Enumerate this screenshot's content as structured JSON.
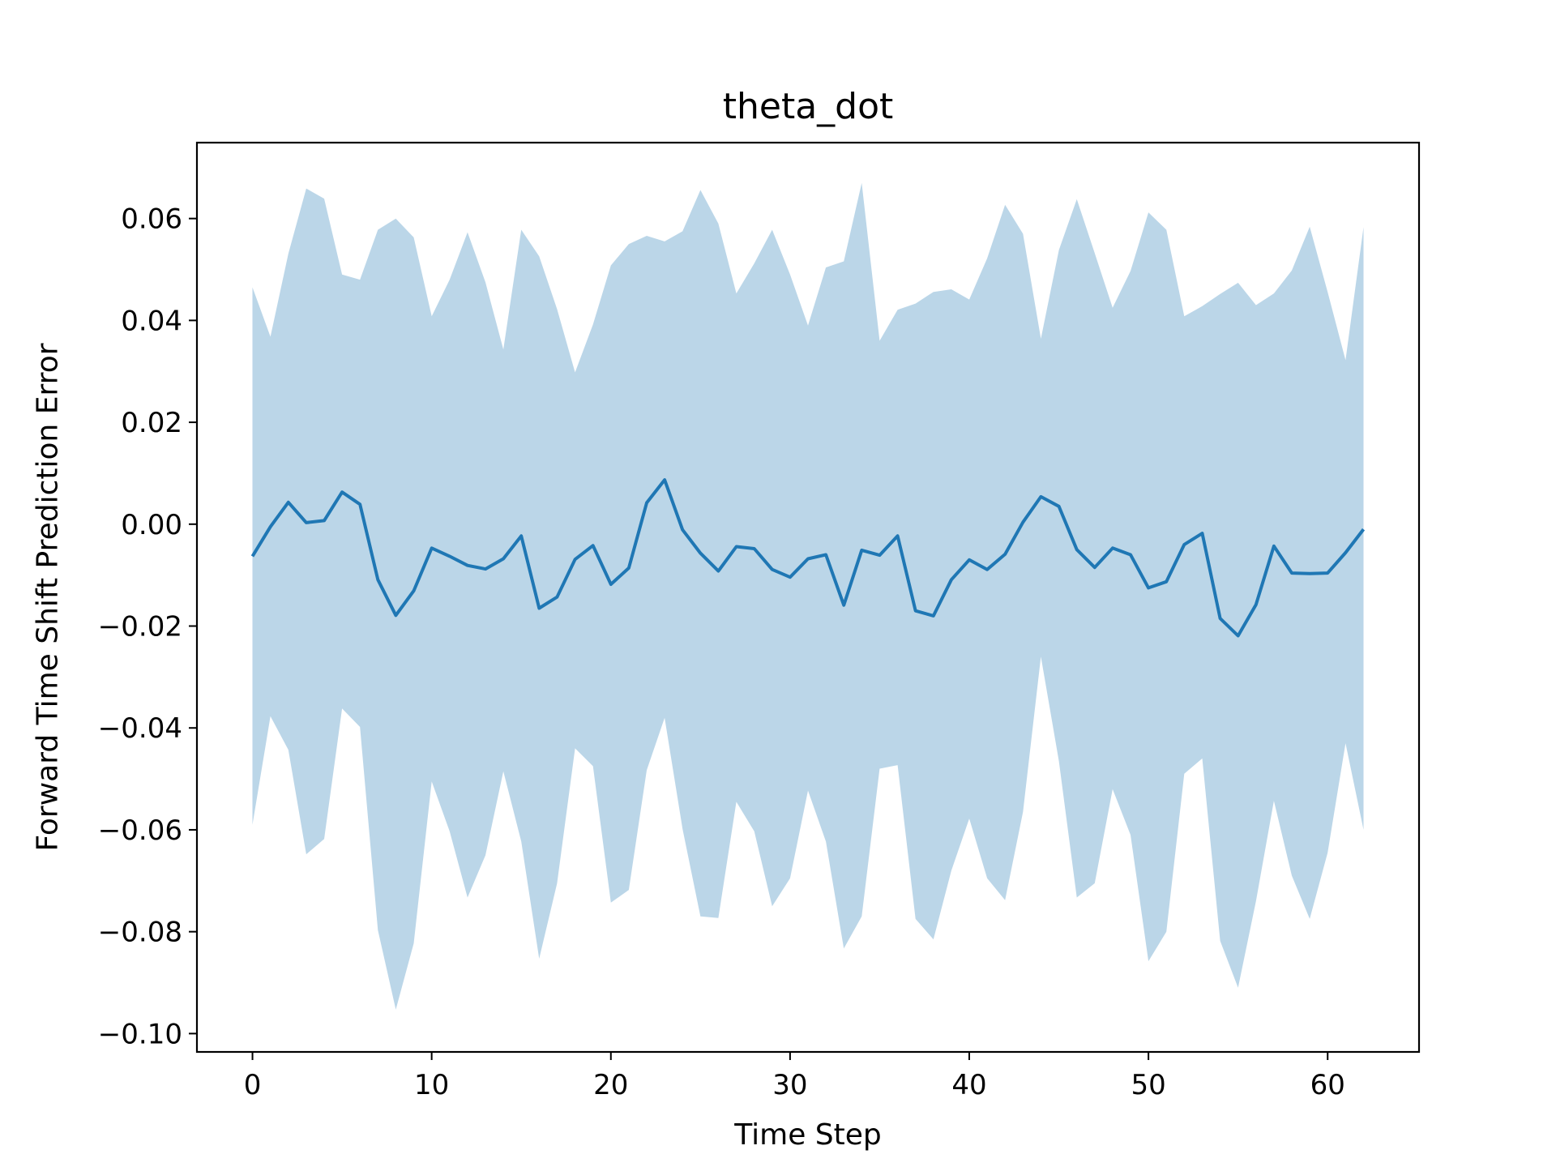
{
  "chart_data": {
    "type": "line",
    "title": "theta_dot",
    "xlabel": "Time Step",
    "ylabel": "Forward Time Shift Prediction Error",
    "xlim": [
      -3.1,
      65.1
    ],
    "ylim": [
      -0.1036,
      0.0749
    ],
    "xticks": [
      0,
      10,
      20,
      30,
      40,
      50,
      60
    ],
    "xtick_labels": [
      "0",
      "10",
      "20",
      "30",
      "40",
      "50",
      "60"
    ],
    "yticks": [
      -0.1,
      -0.08,
      -0.06,
      -0.04,
      -0.02,
      0.0,
      0.02,
      0.04,
      0.06
    ],
    "ytick_labels": [
      "−0.10",
      "−0.08",
      "−0.06",
      "−0.04",
      "−0.02",
      "0.00",
      "0.02",
      "0.04",
      "0.06"
    ],
    "grid": false,
    "legend": "none",
    "colors": {
      "line": "#1f77b4",
      "band": "#1f77b4",
      "band_opacity": 0.3
    },
    "series": [
      {
        "type": "line",
        "x": [
          0,
          1,
          2,
          3,
          4,
          5,
          6,
          7,
          8,
          9,
          10,
          11,
          12,
          13,
          14,
          15,
          16,
          17,
          18,
          19,
          20,
          21,
          22,
          23,
          24,
          25,
          26,
          27,
          28,
          29,
          30,
          31,
          32,
          33,
          34,
          35,
          36,
          37,
          38,
          39,
          40,
          41,
          42,
          43,
          44,
          45,
          46,
          47,
          48,
          49,
          50,
          51,
          52,
          53,
          54,
          55,
          56,
          57,
          58,
          59,
          60,
          61,
          62
        ],
        "values": [
          -0.0063,
          -0.0005,
          0.0043,
          0.0003,
          0.0007,
          0.0063,
          0.0039,
          -0.0109,
          -0.0179,
          -0.0131,
          -0.0047,
          -0.0063,
          -0.0081,
          -0.0088,
          -0.0068,
          -0.0023,
          -0.0165,
          -0.0143,
          -0.0069,
          -0.0042,
          -0.0118,
          -0.0086,
          0.0042,
          0.0087,
          -0.0011,
          -0.0057,
          -0.0092,
          -0.0044,
          -0.0048,
          -0.0089,
          -0.0104,
          -0.0068,
          -0.006,
          -0.0159,
          -0.0051,
          -0.0061,
          -0.0023,
          -0.017,
          -0.018,
          -0.0109,
          -0.007,
          -0.0089,
          -0.0059,
          0.0004,
          0.0054,
          0.0035,
          -0.005,
          -0.0085,
          -0.0047,
          -0.006,
          -0.0125,
          -0.0113,
          -0.004,
          -0.0018,
          -0.0185,
          -0.0219,
          -0.0158,
          -0.0043,
          -0.0096,
          -0.0097,
          -0.0096,
          -0.0056,
          -0.001
        ]
      },
      {
        "type": "band",
        "x": [
          0,
          1,
          2,
          3,
          4,
          5,
          6,
          7,
          8,
          9,
          10,
          11,
          12,
          13,
          14,
          15,
          16,
          17,
          18,
          19,
          20,
          21,
          22,
          23,
          24,
          25,
          26,
          27,
          28,
          29,
          30,
          31,
          32,
          33,
          34,
          35,
          36,
          37,
          38,
          39,
          40,
          41,
          42,
          43,
          44,
          45,
          46,
          47,
          48,
          49,
          50,
          51,
          52,
          53,
          54,
          55,
          56,
          57,
          58,
          59,
          60,
          61,
          62
        ],
        "upper": [
          0.0465,
          0.0368,
          0.0531,
          0.0659,
          0.0639,
          0.049,
          0.048,
          0.0578,
          0.06,
          0.0563,
          0.0408,
          0.048,
          0.0573,
          0.0475,
          0.0343,
          0.0578,
          0.0526,
          0.0422,
          0.0298,
          0.0392,
          0.0508,
          0.055,
          0.0566,
          0.0555,
          0.0575,
          0.0656,
          0.059,
          0.0453,
          0.0512,
          0.0578,
          0.049,
          0.039,
          0.0504,
          0.0516,
          0.067,
          0.036,
          0.0421,
          0.0433,
          0.0456,
          0.0461,
          0.0441,
          0.0522,
          0.0627,
          0.057,
          0.0364,
          0.0538,
          0.0638,
          0.0532,
          0.0425,
          0.0497,
          0.0612,
          0.0578,
          0.0408,
          0.0428,
          0.0452,
          0.0474,
          0.043,
          0.0453,
          0.0498,
          0.0584,
          0.0456,
          0.0322,
          0.0583
        ],
        "lower": [
          -0.059,
          -0.0377,
          -0.0443,
          -0.0648,
          -0.0618,
          -0.0362,
          -0.0398,
          -0.0797,
          -0.0953,
          -0.0823,
          -0.0505,
          -0.0603,
          -0.0733,
          -0.065,
          -0.0485,
          -0.0623,
          -0.0853,
          -0.0705,
          -0.044,
          -0.0475,
          -0.0743,
          -0.0718,
          -0.0483,
          -0.038,
          -0.0598,
          -0.077,
          -0.0773,
          -0.0545,
          -0.0603,
          -0.075,
          -0.0695,
          -0.0523,
          -0.0623,
          -0.0833,
          -0.077,
          -0.048,
          -0.0473,
          -0.0775,
          -0.0815,
          -0.068,
          -0.0578,
          -0.0695,
          -0.0738,
          -0.0565,
          -0.026,
          -0.0465,
          -0.0733,
          -0.0705,
          -0.052,
          -0.061,
          -0.0858,
          -0.08,
          -0.049,
          -0.046,
          -0.0818,
          -0.091,
          -0.074,
          -0.0543,
          -0.069,
          -0.0775,
          -0.0645,
          -0.043,
          -0.06
        ]
      }
    ]
  }
}
